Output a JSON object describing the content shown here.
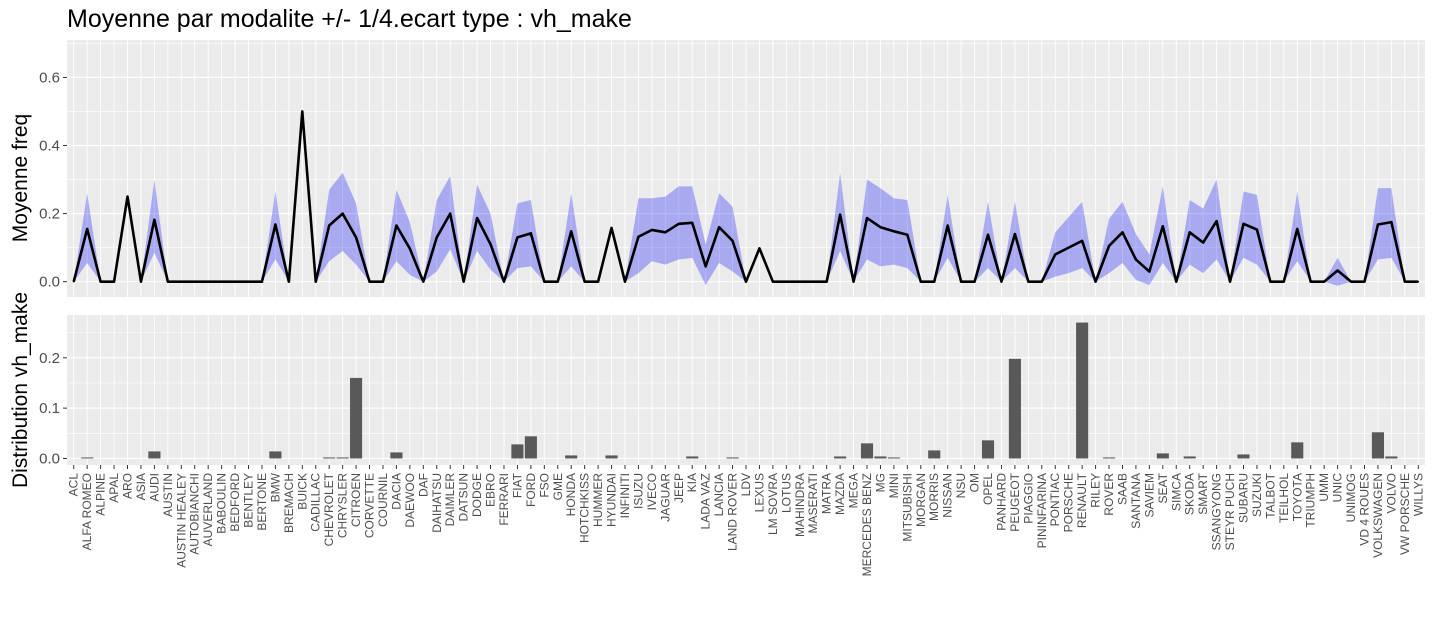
{
  "chart_data": [
    {
      "type": "line",
      "title": "Moyenne par modalite +/- 1/4.ecart type : vh_make",
      "ylabel": "Moyenne freq",
      "ylim": [
        -0.045,
        0.71
      ],
      "yticks": [
        0.0,
        0.2,
        0.4,
        0.6
      ],
      "ytick_labels": [
        "0.0",
        "0.2",
        "0.4",
        "0.6"
      ],
      "grid": true,
      "colors": {
        "panel": "#ebebeb",
        "grid": "#ffffff",
        "band": "#0000ff",
        "line": "#000000"
      },
      "categories": [
        "ACL",
        "ALFA ROMEO",
        "ALPINE",
        "APAL",
        "ARO",
        "ASIA",
        "AUDI",
        "AUSTIN",
        "AUSTIN HEALEY",
        "AUTOBIANCHI",
        "AUVERLAND",
        "BABOULIN",
        "BEDFORD",
        "BENTLEY",
        "BERTONE",
        "BMW",
        "BREMACH",
        "BUICK",
        "CADILLAC",
        "CHEVROLET",
        "CHRYSLER",
        "CITROEN",
        "CORVETTE",
        "COURNIL",
        "DACIA",
        "DAEWOO",
        "DAF",
        "DAIHATSU",
        "DAIMLER",
        "DATSUN",
        "DODGE",
        "EBRO",
        "FERRARI",
        "FIAT",
        "FORD",
        "FSO",
        "GME",
        "HONDA",
        "HOTCHKISS",
        "HUMMER",
        "HYUNDAI",
        "INFINITI",
        "ISUZU",
        "IVECO",
        "JAGUAR",
        "JEEP",
        "KIA",
        "LADA VAZ",
        "LANCIA",
        "LAND ROVER",
        "LDV",
        "LEXUS",
        "LM SOVRA",
        "LOTUS",
        "MAHINDRA",
        "MASERATI",
        "MATRA",
        "MAZDA",
        "MEGA",
        "MERCEDES BENZ",
        "MG",
        "MINI",
        "MITSUBISHI",
        "MORGAN",
        "MORRIS",
        "NISSAN",
        "NSU",
        "OM",
        "OPEL",
        "PANHARD",
        "PEUGEOT",
        "PIAGGIO",
        "PININFARINA",
        "PONTIAC",
        "PORSCHE",
        "RENAULT",
        "RILEY",
        "ROVER",
        "SAAB",
        "SANTANA",
        "SAVIEM",
        "SEAT",
        "SIMCA",
        "SKODA",
        "SMART",
        "SSANGYONG",
        "STEYR PUCH",
        "SUBARU",
        "SUZUKI",
        "TALBOT",
        "TEILHOL",
        "TOYOTA",
        "TRIUMPH",
        "UMM",
        "UNIC",
        "UNIMOG",
        "VD 4 ROUES",
        "VOLKSWAGEN",
        "VOLVO",
        "VW PORSCHE",
        "WILLYS"
      ],
      "series": [
        {
          "values": [
            0,
            0.155,
            0,
            0,
            0.25,
            0,
            0.182,
            0,
            0,
            0,
            0,
            0,
            0,
            0,
            0,
            0.168,
            0,
            0.5,
            0,
            0.165,
            0.2,
            0.13,
            0,
            0,
            0.165,
            0.097,
            0,
            0.13,
            0.2,
            0,
            0.187,
            0.11,
            0,
            0.13,
            0.142,
            0,
            0,
            0.148,
            0,
            0,
            0.158,
            0,
            0.132,
            0.152,
            0.145,
            0.17,
            0.173,
            0.045,
            0.16,
            0.12,
            0,
            0.098,
            0,
            0,
            0,
            0,
            0,
            0.197,
            0,
            0.187,
            0.16,
            0.148,
            0.138,
            0,
            0,
            0.165,
            0,
            0,
            0.138,
            0,
            0.14,
            0,
            0,
            0.08,
            0.1,
            0.12,
            0,
            0.105,
            0.145,
            0.065,
            0.03,
            0.163,
            0,
            0.145,
            0.115,
            0.178,
            0,
            0.17,
            0.153,
            0,
            0,
            0.155,
            0,
            0,
            0.033,
            0,
            0,
            0.168,
            0.175,
            0,
            0
          ],
          "lower": [
            0,
            0.055,
            0,
            0,
            0.25,
            0,
            0.085,
            0,
            0,
            0,
            0,
            0,
            0,
            0,
            0,
            0.065,
            0,
            0.5,
            0,
            0.06,
            0.09,
            0.05,
            0,
            0,
            0.06,
            0.02,
            0,
            0.03,
            0.095,
            0,
            0.09,
            0.035,
            0,
            0.04,
            0.045,
            0,
            0,
            0.045,
            0,
            0,
            0.158,
            0,
            0.025,
            0.06,
            0.05,
            0.065,
            0.07,
            -0.01,
            0.055,
            0.03,
            0,
            0.098,
            0,
            0,
            0,
            0,
            0,
            0.09,
            0,
            0.065,
            0.045,
            0.05,
            0.04,
            0,
            0,
            0.07,
            0,
            0,
            0.04,
            0,
            0.04,
            0,
            0,
            0.015,
            0.025,
            0.04,
            0,
            0.025,
            0.055,
            0.005,
            -0.01,
            0.055,
            0,
            0.05,
            0.025,
            0.065,
            0,
            0.07,
            0.05,
            0,
            0,
            0.06,
            0,
            0,
            -0.012,
            0,
            0,
            0.065,
            0.07,
            0,
            0
          ],
          "upper": [
            0,
            0.26,
            0,
            0,
            0.25,
            0,
            0.3,
            0,
            0,
            0,
            0,
            0,
            0,
            0,
            0,
            0.265,
            0,
            0.5,
            0,
            0.27,
            0.32,
            0.23,
            0,
            0,
            0.27,
            0.175,
            0,
            0.24,
            0.31,
            0,
            0.285,
            0.2,
            0,
            0.23,
            0.24,
            0,
            0,
            0.26,
            0,
            0,
            0.158,
            0,
            0.245,
            0.245,
            0.25,
            0.28,
            0.28,
            0.11,
            0.26,
            0.22,
            0,
            0.098,
            0,
            0,
            0,
            0,
            0,
            0.32,
            0,
            0.3,
            0.275,
            0.245,
            0.24,
            0,
            0,
            0.255,
            0,
            0,
            0.235,
            0,
            0.235,
            0,
            0,
            0.145,
            0.19,
            0.235,
            0,
            0.185,
            0.235,
            0.14,
            0.08,
            0.28,
            0,
            0.24,
            0.215,
            0.3,
            0,
            0.265,
            0.255,
            0,
            0,
            0.265,
            0,
            0,
            0.07,
            0,
            0,
            0.275,
            0.275,
            0,
            0
          ]
        }
      ]
    },
    {
      "type": "bar",
      "ylabel": "Distribution vh_make",
      "ylim": [
        -0.013,
        0.285
      ],
      "yticks": [
        0.0,
        0.1,
        0.2
      ],
      "ytick_labels": [
        "0.0",
        "0.1",
        "0.2"
      ],
      "grid": true,
      "colors": {
        "panel": "#ebebeb",
        "grid": "#ffffff",
        "bar": "#595959"
      },
      "values": [
        0,
        0.002,
        0,
        0,
        0,
        0,
        0.014,
        0,
        0,
        0,
        0,
        0,
        0,
        0,
        0,
        0.014,
        0,
        0,
        0,
        0.002,
        0.002,
        0.16,
        0,
        0,
        0.012,
        0,
        0,
        0,
        0,
        0,
        0,
        0,
        0,
        0.028,
        0.044,
        0,
        0,
        0.006,
        0,
        0,
        0.006,
        0,
        0,
        0,
        0,
        0,
        0.004,
        0,
        0,
        0.002,
        0,
        0,
        0,
        0,
        0,
        0,
        0,
        0.004,
        0,
        0.03,
        0.004,
        0.002,
        0,
        0,
        0.016,
        0,
        0,
        0,
        0.036,
        0,
        0.198,
        0,
        0,
        0,
        0,
        0.27,
        0,
        0.002,
        0,
        0,
        0,
        0.01,
        0,
        0.004,
        0,
        0,
        0,
        0.008,
        0,
        0,
        0,
        0.032,
        0,
        0,
        0,
        0,
        0,
        0.052,
        0.004,
        0,
        0
      ]
    }
  ]
}
